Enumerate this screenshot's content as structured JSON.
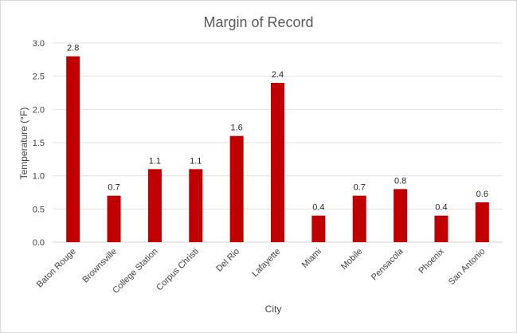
{
  "chart_data": {
    "type": "bar",
    "title": "Margin of Record",
    "xlabel": "City",
    "ylabel": "Temperature (°F)",
    "categories": [
      "Baton Rouge",
      "Brownsville",
      "College Station",
      "Corpus Christi",
      "Del Rio",
      "Lafayette",
      "Miami",
      "Mobile",
      "Pensacola",
      "Phoenix",
      "San Antonio"
    ],
    "values": [
      2.8,
      0.7,
      1.1,
      1.1,
      1.6,
      2.4,
      0.4,
      0.7,
      0.8,
      0.4,
      0.6
    ],
    "data_labels": [
      "2.8",
      "0.7",
      "1.1",
      "1.1",
      "1.6",
      "2.4",
      "0.4",
      "0.7",
      "0.8",
      "0.4",
      "0.6"
    ],
    "yticks": [
      "0.0",
      "0.5",
      "1.0",
      "1.5",
      "2.0",
      "2.5",
      "3.0"
    ],
    "ylim": [
      0,
      3.0
    ],
    "grid": true,
    "legend": "none",
    "bar_color": "#c00000"
  }
}
